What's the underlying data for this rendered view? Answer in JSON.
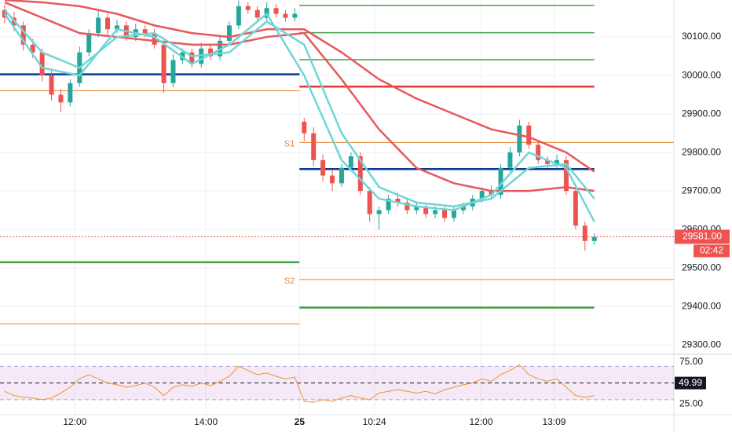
{
  "chart_data": {
    "type": "candlestick",
    "xlim": [
      0,
      72
    ],
    "xticks": [
      {
        "value": 8,
        "label": "12:00"
      },
      {
        "value": 22,
        "label": "14:00"
      },
      {
        "value": 32,
        "label": "25"
      },
      {
        "value": 40,
        "label": "10:24"
      },
      {
        "value": 51.4,
        "label": "12:00"
      },
      {
        "value": 59.2,
        "label": "13:09"
      }
    ],
    "ylim": [
      29278,
      30196
    ],
    "yticks": [
      {
        "value": 29300,
        "label": "29300.00"
      },
      {
        "value": 29400,
        "label": "29400.00"
      },
      {
        "value": 29500,
        "label": "29500.00"
      },
      {
        "value": 29600,
        "label": "29600.00"
      },
      {
        "value": 29700,
        "label": "29700.00"
      },
      {
        "value": 29800,
        "label": "29800.00"
      },
      {
        "value": 29900,
        "label": "29900.00"
      },
      {
        "value": 30000,
        "label": "30000.00"
      },
      {
        "value": 30100,
        "label": "30100.00"
      }
    ],
    "grid": true,
    "up_color": "#26a69a",
    "down_color": "#ef5350",
    "open": [
      30170,
      30150,
      30130,
      30080,
      30060,
      30000,
      29950,
      29930,
      29980,
      30060,
      30110,
      30150,
      30120,
      30130,
      30100,
      30120,
      30110,
      30080,
      29980,
      30040,
      30060,
      30030,
      30070,
      30050,
      30090,
      30130,
      30180,
      30170,
      30150,
      30175,
      30160,
      30150,
      29880,
      29850,
      29780,
      29740,
      29720,
      29760,
      29790,
      29700,
      29640,
      29650,
      29680,
      29670,
      29650,
      29660,
      29640,
      29650,
      29630,
      29650,
      29660,
      29680,
      29700,
      29690,
      29760,
      29800,
      29870,
      29820,
      29780,
      29770,
      29780,
      29700,
      29610,
      29570
    ],
    "high": [
      30185,
      30165,
      30140,
      30095,
      30070,
      30015,
      29965,
      29990,
      30075,
      30120,
      30170,
      30160,
      30145,
      30140,
      30135,
      30130,
      30120,
      30090,
      30055,
      30070,
      30070,
      30085,
      30080,
      30105,
      30140,
      30195,
      30190,
      30180,
      30190,
      30185,
      30170,
      30175,
      29890,
      29865,
      29795,
      29755,
      29770,
      29800,
      29800,
      29710,
      29660,
      29690,
      29695,
      29680,
      29670,
      29670,
      29660,
      29660,
      29660,
      29670,
      29690,
      29710,
      29715,
      29770,
      29815,
      29885,
      29880,
      29830,
      29790,
      29795,
      29790,
      29705,
      29620,
      29590
    ],
    "low": [
      30135,
      30115,
      30065,
      30045,
      29985,
      29935,
      29905,
      29920,
      29970,
      30050,
      30100,
      30105,
      30110,
      30090,
      30090,
      30100,
      30070,
      29955,
      29970,
      30030,
      30020,
      30020,
      30040,
      30040,
      30080,
      30120,
      30160,
      30140,
      30140,
      30150,
      30140,
      30140,
      29830,
      29765,
      29725,
      29700,
      29710,
      29750,
      29690,
      29620,
      29600,
      29640,
      29660,
      29640,
      29640,
      29630,
      29630,
      29620,
      29620,
      29640,
      29650,
      29670,
      29680,
      29680,
      29750,
      29790,
      29810,
      29770,
      29760,
      29760,
      29690,
      29600,
      29545,
      29560
    ],
    "close": [
      30150,
      30130,
      30080,
      30060,
      30000,
      29950,
      29930,
      29980,
      30060,
      30110,
      30150,
      30120,
      30130,
      30100,
      30120,
      30110,
      30080,
      29980,
      30040,
      30060,
      30030,
      30070,
      30050,
      30090,
      30130,
      30180,
      30170,
      30150,
      30175,
      30160,
      30150,
      30160,
      29850,
      29780,
      29740,
      29720,
      29760,
      29790,
      29700,
      29640,
      29650,
      29680,
      29670,
      29650,
      29660,
      29640,
      29650,
      29630,
      29650,
      29660,
      29680,
      29700,
      29690,
      29760,
      29800,
      29870,
      29820,
      29780,
      29770,
      29780,
      29700,
      29610,
      29570,
      29581
    ],
    "last_price_label": "29581.00",
    "countdown": "02:42",
    "lines": [
      {
        "color": "#e8575c",
        "x": [
          0.5,
          4.5,
          8.5,
          12.5,
          16.5,
          20.5,
          24.5,
          28.5,
          32.5,
          36.5,
          40.5,
          44.5,
          48.5,
          52.5,
          56.5,
          60.5,
          63.5
        ],
        "values": [
          30196,
          30190,
          30180,
          30160,
          30130,
          30110,
          30100,
          30120,
          30120,
          30060,
          29990,
          29940,
          29900,
          29860,
          29840,
          29800,
          29750
        ]
      },
      {
        "color": "#e8575c",
        "x": [
          0.5,
          4.5,
          8.5,
          12.5,
          16.5,
          20.5,
          24.5,
          28.5,
          32.5,
          36.5,
          40.5,
          44.5,
          48.5,
          52.5,
          56.5,
          60.5,
          63.5
        ],
        "values": [
          30190,
          30150,
          30110,
          30100,
          30090,
          30080,
          30080,
          30100,
          30110,
          29990,
          29860,
          29760,
          29720,
          29700,
          29700,
          29710,
          29700
        ]
      },
      {
        "color": "#6fd6d6",
        "x": [
          0.5,
          4.5,
          8.5,
          12.5,
          16.5,
          20.5,
          24.5,
          28.5,
          32.5,
          36.5,
          40.5,
          44.5,
          48.5,
          52.5,
          56.5,
          60.5,
          63.5
        ],
        "values": [
          30170,
          30060,
          30020,
          30100,
          30110,
          30050,
          30060,
          30140,
          30080,
          29850,
          29710,
          29670,
          29660,
          29680,
          29760,
          29770,
          29680
        ]
      },
      {
        "color": "#6fd6d6",
        "x": [
          0.5,
          4.5,
          8.5,
          12.5,
          16.5,
          20.5,
          24.5,
          28.5,
          32.5,
          36.5,
          40.5,
          44.5,
          48.5,
          52.5,
          56.5,
          60.5,
          63.5
        ],
        "values": [
          30160,
          30020,
          30000,
          30120,
          30100,
          30030,
          30080,
          30160,
          30000,
          29780,
          29680,
          29660,
          29650,
          29690,
          29800,
          29760,
          29620
        ]
      }
    ],
    "levels": [
      {
        "value": 30003,
        "color": "#0d3b8c",
        "width": 2.5,
        "from": 0,
        "to": 32
      },
      {
        "value": 29960,
        "color": "#e8842c",
        "width": 1,
        "from": 0,
        "to": 32
      },
      {
        "value": 29515,
        "color": "#43a047",
        "width": 2.5,
        "from": 0,
        "to": 32
      },
      {
        "value": 29355,
        "color": "#e8842c",
        "width": 1,
        "from": 0,
        "to": 32
      },
      {
        "value": 30182,
        "color": "#43a047",
        "width": 1.5,
        "from": 32,
        "to": 63.5
      },
      {
        "value": 30111,
        "color": "#43a047",
        "width": 1.5,
        "from": 32,
        "to": 63.5
      },
      {
        "value": 30041,
        "color": "#43a047",
        "width": 1.5,
        "from": 32,
        "to": 63.5
      },
      {
        "value": 29971,
        "color": "#e53935",
        "width": 2.5,
        "from": 32,
        "to": 63.5
      },
      {
        "value": 29826,
        "color": "#e8842c",
        "width": 1,
        "from": 32,
        "to": 72,
        "label": "S1"
      },
      {
        "value": 29757,
        "color": "#0d3b8c",
        "width": 2.5,
        "from": 32,
        "to": 63.5
      },
      {
        "value": 29470,
        "color": "#e8842c",
        "width": 1,
        "from": 32,
        "to": 72,
        "label": "S2"
      },
      {
        "value": 29397,
        "color": "#43a047",
        "width": 2.5,
        "from": 32,
        "to": 63.5
      }
    ],
    "rsi": {
      "color": "#f0932b",
      "ylim": [
        13,
        83.5
      ],
      "yticks": [
        {
          "value": 25,
          "label": "25.00"
        },
        {
          "value": 75,
          "label": "75.00"
        }
      ],
      "band": [
        70,
        30
      ],
      "mid": {
        "value": 49.99,
        "label": "49.99"
      },
      "values": [
        40,
        35,
        33,
        32,
        30,
        32,
        38,
        45,
        55,
        60,
        55,
        50,
        48,
        45,
        47,
        50,
        45,
        35,
        45,
        48,
        46,
        50,
        47,
        52,
        58,
        70,
        65,
        60,
        62,
        58,
        55,
        57,
        28,
        27,
        30,
        28,
        32,
        35,
        32,
        30,
        38,
        40,
        42,
        40,
        38,
        40,
        37,
        42,
        45,
        48,
        50,
        55,
        52,
        60,
        65,
        72,
        60,
        55,
        52,
        55,
        45,
        35,
        33,
        35
      ]
    }
  }
}
